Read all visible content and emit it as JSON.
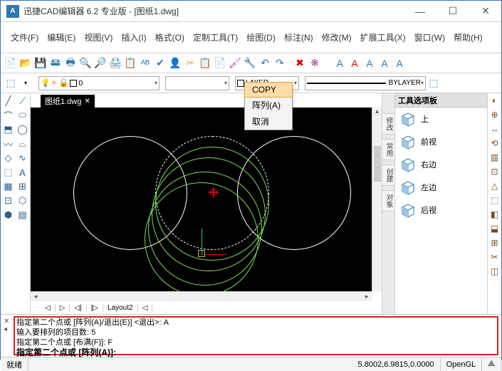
{
  "app": {
    "icon": "A",
    "title": "迅捷CAD编辑器 6.2 专业版  - [图纸1.dwg]"
  },
  "winbtns": {
    "min": "—",
    "max": "☐",
    "close": "✕"
  },
  "menu": [
    "文件(F)",
    "编辑(E)",
    "视图(V)",
    "插入(I)",
    "格式(O)",
    "定制工具(T)",
    "绘图(D)",
    "标注(N)",
    "修改(M)",
    "扩展工具(X)",
    "窗口(W)",
    "帮助(H)"
  ],
  "toolbar1": {
    "icons": [
      "📄",
      "📂",
      "💾",
      "🖴",
      "🖶",
      "🔍",
      "🔎",
      "🖨",
      "📋",
      "ᴬᴮ",
      "✔",
      "👤",
      "✂",
      "📋",
      "📄",
      "🖌",
      "🔧",
      "↶",
      "↷",
      "",
      "✖",
      "❋",
      "",
      "",
      "A",
      "A",
      "A",
      "A",
      "A"
    ],
    "colors": [
      "#d48",
      "#e6a23c",
      "#2a7ab0",
      "#2a7ab0",
      "#2a7ab0",
      "#2a7ab0",
      "#2a7ab0",
      "#2a7ab0",
      "#2a7ab0",
      "#2a7ab0",
      "#2a7ab0",
      "#2a7ab0",
      "#e6a23c",
      "#e6a23c",
      "#e6a23c",
      "#b04aa0",
      "#2a7ab0",
      "#2a7ab0",
      "#2a7ab0",
      "",
      "#d00",
      "#b04aa0",
      "",
      "",
      "#2a7ab0",
      "#d00",
      "#2a7ab0",
      "#2a7ab0",
      "#2a7ab0"
    ]
  },
  "toolbar2": {
    "layer_label": "0",
    "bylayer": "BYLAYER"
  },
  "doctab": {
    "name": "图纸1.dwg",
    "close": "✕"
  },
  "ctx": {
    "items": [
      "COPY",
      "阵列(A)",
      "取消"
    ]
  },
  "palette": {
    "title": "工具选项板",
    "tabs": [
      "修改",
      "常用",
      "创建",
      "对象"
    ],
    "items": [
      "上",
      "前视",
      "右边",
      "左边",
      "后视"
    ]
  },
  "modeltabs": [
    "◁",
    "▷",
    "◁|",
    "|▷",
    "Layout2",
    "◁"
  ],
  "cmd": {
    "l1": "指定第二个点或 [阵列(A)/退出(E)] <退出>: A",
    "l2": "输入要排列的项目数: 5",
    "l3": "指定第二个点或 [布满(F)]: F",
    "cur": "指定第二个点或 [阵列(A)]:"
  },
  "status": {
    "left": "就绪",
    "coords": "5.8002,6.9815,0.0000",
    "mode": "OpenGL"
  },
  "colors": {
    "accent": "#2a7ab0",
    "canvas": "#000",
    "cmdborder": "#d92020"
  }
}
